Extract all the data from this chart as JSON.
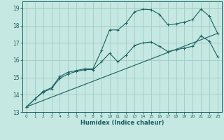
{
  "xlabel": "Humidex (Indice chaleur)",
  "xlim": [
    -0.5,
    23.5
  ],
  "ylim": [
    13,
    19.4
  ],
  "yticks": [
    13,
    14,
    15,
    16,
    17,
    18,
    19
  ],
  "xticks": [
    0,
    1,
    2,
    3,
    4,
    5,
    6,
    7,
    8,
    9,
    10,
    11,
    12,
    13,
    14,
    15,
    16,
    17,
    18,
    19,
    20,
    21,
    22,
    23
  ],
  "bg_color": "#c6e8e2",
  "grid_color": "#9eccc4",
  "line_color": "#1a6060",
  "line1_x": [
    0,
    1,
    2,
    3,
    4,
    5,
    6,
    7,
    8,
    9,
    10,
    11,
    12,
    13,
    14,
    15,
    16,
    17,
    18,
    19,
    20,
    21,
    22,
    23
  ],
  "line1_y": [
    13.3,
    13.75,
    14.2,
    14.4,
    15.05,
    15.3,
    15.4,
    15.5,
    15.5,
    16.55,
    17.75,
    17.75,
    18.15,
    18.8,
    18.95,
    18.92,
    18.65,
    18.05,
    18.1,
    18.2,
    18.35,
    18.95,
    18.55,
    17.55
  ],
  "line2_x": [
    0,
    1,
    2,
    3,
    4,
    5,
    6,
    7,
    8,
    9,
    10,
    11,
    12,
    13,
    14,
    15,
    16,
    17,
    18,
    19,
    20,
    21,
    22,
    23
  ],
  "line2_y": [
    13.3,
    13.75,
    14.15,
    14.35,
    14.95,
    15.2,
    15.35,
    15.45,
    15.45,
    15.9,
    16.4,
    15.9,
    16.3,
    16.85,
    17.0,
    17.05,
    16.8,
    16.5,
    16.6,
    16.7,
    16.8,
    17.4,
    17.1,
    16.2
  ],
  "line3_x": [
    0,
    23
  ],
  "line3_y": [
    13.3,
    17.55
  ]
}
